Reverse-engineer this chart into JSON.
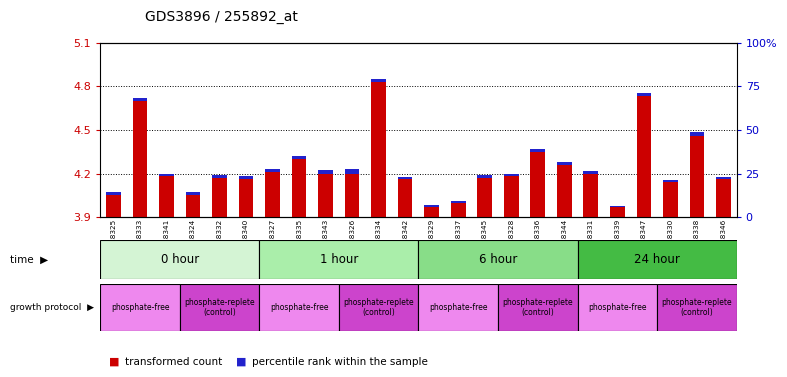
{
  "title": "GDS3896 / 255892_at",
  "samples": [
    "GSM618325",
    "GSM618333",
    "GSM618341",
    "GSM618324",
    "GSM618332",
    "GSM618340",
    "GSM618327",
    "GSM618335",
    "GSM618343",
    "GSM618326",
    "GSM618334",
    "GSM618342",
    "GSM618329",
    "GSM618337",
    "GSM618345",
    "GSM618328",
    "GSM618336",
    "GSM618344",
    "GSM618331",
    "GSM618339",
    "GSM618347",
    "GSM618330",
    "GSM618338",
    "GSM618346"
  ],
  "red_values": [
    4.05,
    4.7,
    4.18,
    4.05,
    4.17,
    4.16,
    4.21,
    4.3,
    4.2,
    4.2,
    4.83,
    4.16,
    3.97,
    4.0,
    4.17,
    4.18,
    4.35,
    4.26,
    4.2,
    3.97,
    4.73,
    4.14,
    4.46,
    4.16
  ],
  "blue_heights": [
    0.022,
    0.022,
    0.018,
    0.02,
    0.018,
    0.02,
    0.02,
    0.022,
    0.022,
    0.028,
    0.022,
    0.018,
    0.016,
    0.014,
    0.018,
    0.02,
    0.022,
    0.022,
    0.018,
    0.01,
    0.022,
    0.018,
    0.026,
    0.018
  ],
  "y_min": 3.9,
  "y_max": 5.1,
  "y_ticks": [
    3.9,
    4.2,
    4.5,
    4.8,
    5.1
  ],
  "right_y_ticks_pct": [
    0,
    25,
    50,
    75,
    100
  ],
  "right_y_labels": [
    "0",
    "25",
    "50",
    "75",
    "100%"
  ],
  "dotted_lines": [
    4.2,
    4.5,
    4.8
  ],
  "time_groups": [
    {
      "label": "0 hour",
      "start": 0,
      "end": 6
    },
    {
      "label": "1 hour",
      "start": 6,
      "end": 12
    },
    {
      "label": "6 hour",
      "start": 12,
      "end": 18
    },
    {
      "label": "24 hour",
      "start": 18,
      "end": 24
    }
  ],
  "time_colors": [
    "#d4f4d4",
    "#aaeeaa",
    "#88dd88",
    "#44bb44"
  ],
  "protocol_groups": [
    {
      "label": "phosphate-free",
      "start": 0,
      "end": 3,
      "type": "free"
    },
    {
      "label": "phosphate-replete\n(control)",
      "start": 3,
      "end": 6,
      "type": "replete"
    },
    {
      "label": "phosphate-free",
      "start": 6,
      "end": 9,
      "type": "free"
    },
    {
      "label": "phosphate-replete\n(control)",
      "start": 9,
      "end": 12,
      "type": "replete"
    },
    {
      "label": "phosphate-free",
      "start": 12,
      "end": 15,
      "type": "free"
    },
    {
      "label": "phosphate-replete\n(control)",
      "start": 15,
      "end": 18,
      "type": "replete"
    },
    {
      "label": "phosphate-free",
      "start": 18,
      "end": 21,
      "type": "free"
    },
    {
      "label": "phosphate-replete\n(control)",
      "start": 21,
      "end": 24,
      "type": "replete"
    }
  ],
  "prot_free_color": "#ee88ee",
  "prot_replete_color": "#cc44cc",
  "bar_width": 0.55,
  "red_color": "#cc0000",
  "blue_color": "#2222cc",
  "bg_color": "#ffffff",
  "plot_bg": "#ffffff",
  "title_fontsize": 10,
  "left_tick_color": "#cc0000",
  "right_tick_color": "#0000cc"
}
